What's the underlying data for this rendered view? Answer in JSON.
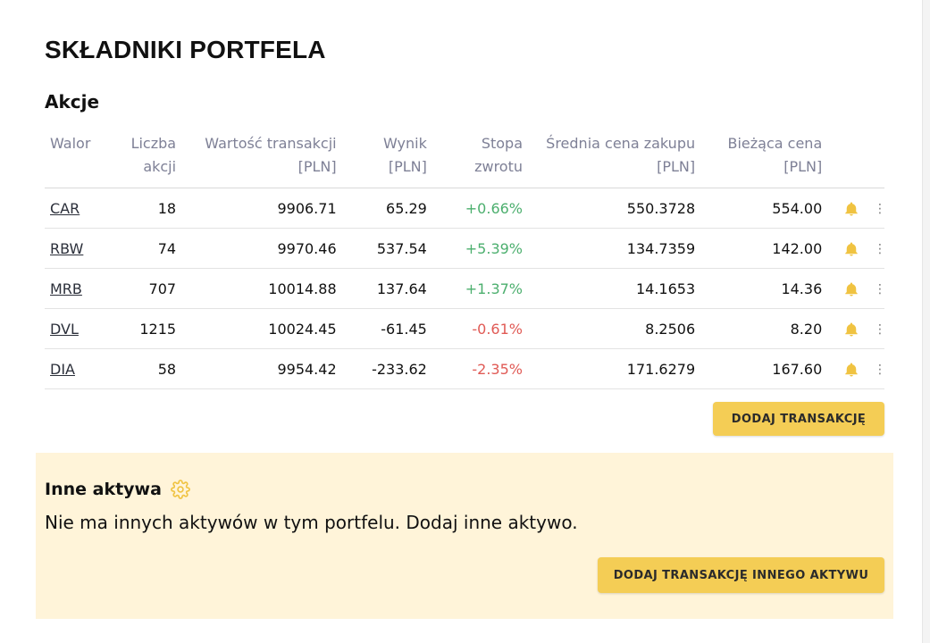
{
  "page": {
    "title": "SKŁADNIKI PORTFELA"
  },
  "stocks": {
    "section_title": "Akcje",
    "headers": {
      "asset": "Walor",
      "shares_1": "Liczba",
      "shares_2": "akcji",
      "value_1": "Wartość transakcji",
      "value_2": "[PLN]",
      "result_1": "Wynik",
      "result_2": "[PLN]",
      "return_1": "Stopa",
      "return_2": "zwrotu",
      "avg_price_1": "Średnia cena zakupu",
      "avg_price_2": "[PLN]",
      "cur_price_1": "Bieżąca cena",
      "cur_price_2": "[PLN]"
    },
    "rows": [
      {
        "ticker": "CAR",
        "shares": "18",
        "value": "9906.71",
        "result": "65.29",
        "return": "+0.66%",
        "avg_price": "550.3728",
        "cur_price": "554.00"
      },
      {
        "ticker": "RBW",
        "shares": "74",
        "value": "9970.46",
        "result": "537.54",
        "return": "+5.39%",
        "avg_price": "134.7359",
        "cur_price": "142.00"
      },
      {
        "ticker": "MRB",
        "shares": "707",
        "value": "10014.88",
        "result": "137.64",
        "return": "+1.37%",
        "avg_price": "14.1653",
        "cur_price": "14.36"
      },
      {
        "ticker": "DVL",
        "shares": "1215",
        "value": "10024.45",
        "result": "-61.45",
        "return": "-0.61%",
        "avg_price": "8.2506",
        "cur_price": "8.20"
      },
      {
        "ticker": "DIA",
        "shares": "58",
        "value": "9954.42",
        "result": "-233.62",
        "return": "-2.35%",
        "avg_price": "171.6279",
        "cur_price": "167.60"
      }
    ],
    "add_button": "DODAJ TRANSAKCJĘ",
    "row_icons": {
      "alert": "bell-icon",
      "menu": "kebab-menu-icon"
    }
  },
  "other_assets": {
    "title": "Inne aktywa",
    "title_icon": "gear-icon",
    "message": "Nie ma innych aktywów w tym portfelu. Dodaj inne aktywo.",
    "add_button": "DODAJ TRANSAKCJĘ INNEGO AKTYWU"
  },
  "colors": {
    "accent": "#f4cd55",
    "positive": "#4caf6e",
    "negative": "#e05a55",
    "header_text": "#7e8096",
    "panel_bg": "#fff4d9"
  }
}
